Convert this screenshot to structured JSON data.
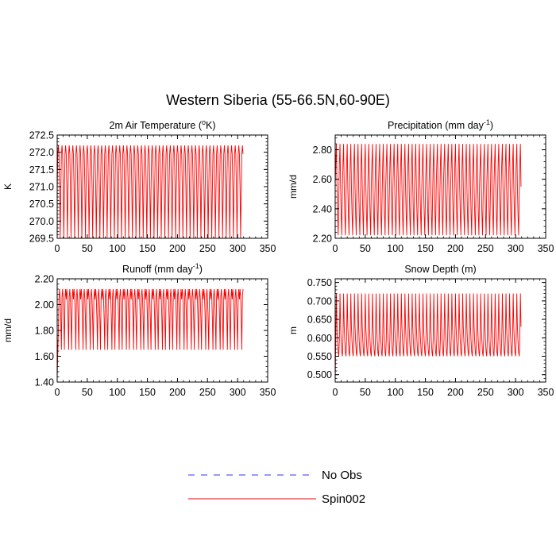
{
  "suptitle": "Western Siberia (55-66.5N,60-90E)",
  "legend": [
    {
      "label": "No Obs",
      "color": "#3333ff",
      "style": "dashed"
    },
    {
      "label": "Spin002",
      "color": "#ff0000",
      "style": "solid"
    }
  ],
  "colors": {
    "series": "#ff0000",
    "obs": "#3333ff",
    "axis": "#000000"
  },
  "chart_data": [
    {
      "type": "line",
      "title": "2m Air Temperature (",
      "title_unit": "o",
      "title_after": "K)",
      "ylabel": "K",
      "xlim": [
        0,
        350
      ],
      "ylim": [
        269.5,
        272.5
      ],
      "xticks": [
        0,
        50,
        100,
        150,
        200,
        250,
        300,
        350
      ],
      "yticks": [
        269.5,
        270.0,
        270.5,
        271.0,
        271.5,
        272.0,
        272.5
      ],
      "ytick_labels": [
        "269.5",
        "270.0",
        "270.5",
        "271.0",
        "271.5",
        "272.0",
        "272.5"
      ],
      "series": [
        {
          "name": "Spin002",
          "cycle": [
            270.85,
            271.95,
            272.2,
            271.95,
            271.0,
            269.5,
            270.85,
            271.95,
            272.2,
            271.95,
            271.0,
            269.5
          ],
          "n": 310
        }
      ]
    },
    {
      "type": "line",
      "title": "Precipitation (mm day",
      "title_unit": "-1",
      "title_after": ")",
      "ylabel": "mm/d",
      "xlim": [
        0,
        350
      ],
      "ylim": [
        2.2,
        2.9
      ],
      "xticks": [
        0,
        50,
        100,
        150,
        200,
        250,
        300,
        350
      ],
      "yticks": [
        2.2,
        2.4,
        2.6,
        2.8
      ],
      "ytick_labels": [
        "2.20",
        "2.40",
        "2.60",
        "2.80"
      ],
      "series": [
        {
          "name": "Spin002",
          "cycle": [
            2.55,
            2.71,
            2.84,
            2.55,
            2.36,
            2.22,
            2.48,
            2.71,
            2.84,
            2.55,
            2.36,
            2.22
          ],
          "n": 310
        }
      ]
    },
    {
      "type": "line",
      "title": "Runoff (mm day",
      "title_unit": "-1",
      "title_after": ")",
      "ylabel": "mm/d",
      "xlim": [
        0,
        350
      ],
      "ylim": [
        1.4,
        2.2
      ],
      "xticks": [
        0,
        50,
        100,
        150,
        200,
        250,
        300,
        350
      ],
      "yticks": [
        1.4,
        1.6,
        1.8,
        2.0,
        2.2
      ],
      "ytick_labels": [
        "1.40",
        "1.60",
        "1.80",
        "2.00",
        "2.20"
      ],
      "series": [
        {
          "name": "Spin002",
          "start": [
            1.42,
            1.63,
            1.8
          ],
          "cycle": [
            2.04,
            2.12,
            2.06,
            1.9,
            1.65,
            2.06,
            2.12,
            2.04,
            1.88,
            1.65,
            2.05,
            2.12
          ],
          "n": 310
        }
      ]
    },
    {
      "type": "line",
      "title": "Snow Depth (m)",
      "title_unit": "",
      "title_after": "",
      "ylabel": "m",
      "xlim": [
        0,
        350
      ],
      "ylim": [
        0.48,
        0.76
      ],
      "xticks": [
        0,
        50,
        100,
        150,
        200,
        250,
        300,
        350
      ],
      "yticks": [
        0.5,
        0.55,
        0.6,
        0.65,
        0.7,
        0.75
      ],
      "ytick_labels": [
        "0.500",
        "0.550",
        "0.600",
        "0.650",
        "0.700",
        "0.750"
      ],
      "series": [
        {
          "name": "Spin002",
          "start": [
            0.48,
            0.6
          ],
          "cycle": [
            0.72,
            0.63,
            0.59,
            0.56,
            0.55,
            0.6,
            0.72,
            0.63,
            0.59,
            0.56,
            0.55,
            0.6
          ],
          "n": 310
        }
      ]
    }
  ]
}
